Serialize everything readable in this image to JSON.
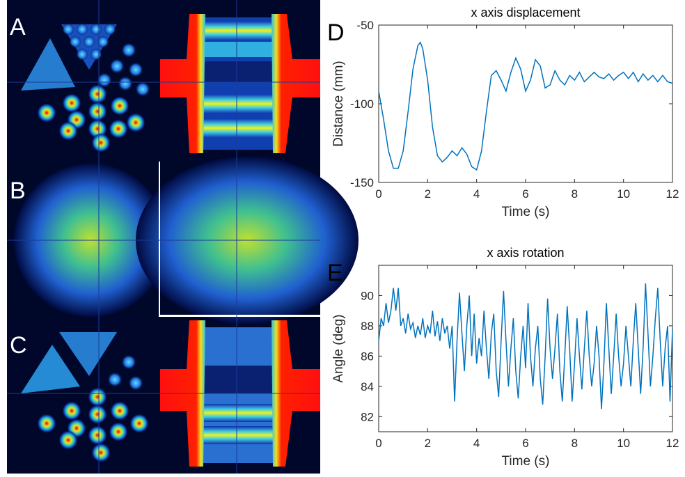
{
  "image_panels": {
    "labels": [
      "A",
      "B",
      "C"
    ]
  },
  "chart_data": [
    {
      "type": "line",
      "panel_label": "D",
      "title": "x axis displacement",
      "xlabel": "Time (s)",
      "ylabel": "Distance (mm)",
      "xlim": [
        0,
        12
      ],
      "xticks": [
        0,
        2,
        4,
        6,
        8,
        10,
        12
      ],
      "ylim": [
        -150,
        -50
      ],
      "yticks": [
        -150,
        -100,
        -50
      ],
      "x": [
        0,
        0.2,
        0.4,
        0.6,
        0.8,
        1.0,
        1.2,
        1.4,
        1.6,
        1.7,
        1.8,
        2.0,
        2.2,
        2.4,
        2.6,
        2.8,
        3.0,
        3.2,
        3.4,
        3.6,
        3.8,
        4.0,
        4.2,
        4.4,
        4.6,
        4.8,
        5.0,
        5.2,
        5.4,
        5.6,
        5.8,
        6.0,
        6.2,
        6.4,
        6.6,
        6.8,
        7.0,
        7.2,
        7.4,
        7.6,
        7.8,
        8.0,
        8.2,
        8.4,
        8.6,
        8.8,
        9.0,
        9.2,
        9.4,
        9.6,
        9.8,
        10.0,
        10.2,
        10.4,
        10.6,
        10.8,
        11.0,
        11.2,
        11.4,
        11.6,
        11.8,
        12.0
      ],
      "series": [
        {
          "color": "#0072bd",
          "values": [
            -92,
            -110,
            -130,
            -141,
            -141,
            -130,
            -105,
            -78,
            -63,
            -61,
            -65,
            -85,
            -115,
            -133,
            -137,
            -134,
            -130,
            -133,
            -128,
            -132,
            -140,
            -142,
            -130,
            -105,
            -82,
            -79,
            -85,
            -92,
            -80,
            -71,
            -78,
            -92,
            -85,
            -72,
            -76,
            -90,
            -88,
            -79,
            -85,
            -88,
            -82,
            -85,
            -80,
            -86,
            -83,
            -80,
            -83,
            -84,
            -81,
            -85,
            -82,
            -80,
            -84,
            -80,
            -86,
            -81,
            -85,
            -82,
            -86,
            -82,
            -86,
            -87
          ]
        }
      ]
    },
    {
      "type": "line",
      "panel_label": "E",
      "title": "x axis rotation",
      "xlabel": "Time (s)",
      "ylabel": "Angle (deg)",
      "xlim": [
        0,
        12
      ],
      "xticks": [
        0,
        2,
        4,
        6,
        8,
        10,
        12
      ],
      "ylim": [
        81,
        92
      ],
      "yticks": [
        82,
        84,
        86,
        88,
        90
      ],
      "x": [
        0,
        0.1,
        0.2,
        0.3,
        0.4,
        0.5,
        0.6,
        0.7,
        0.8,
        0.9,
        1.0,
        1.1,
        1.2,
        1.3,
        1.4,
        1.5,
        1.6,
        1.7,
        1.8,
        1.9,
        2.0,
        2.1,
        2.2,
        2.3,
        2.4,
        2.5,
        2.6,
        2.7,
        2.8,
        2.9,
        3.0,
        3.1,
        3.2,
        3.3,
        3.4,
        3.5,
        3.6,
        3.7,
        3.8,
        3.9,
        4.0,
        4.1,
        4.2,
        4.3,
        4.4,
        4.5,
        4.6,
        4.7,
        4.8,
        4.9,
        5.0,
        5.1,
        5.2,
        5.3,
        5.4,
        5.5,
        5.6,
        5.7,
        5.8,
        5.9,
        6.0,
        6.1,
        6.2,
        6.3,
        6.4,
        6.5,
        6.6,
        6.7,
        6.8,
        6.9,
        7.0,
        7.1,
        7.2,
        7.3,
        7.4,
        7.5,
        7.6,
        7.7,
        7.8,
        7.9,
        8.0,
        8.1,
        8.2,
        8.3,
        8.4,
        8.5,
        8.6,
        8.7,
        8.8,
        8.9,
        9.0,
        9.1,
        9.2,
        9.3,
        9.4,
        9.5,
        9.6,
        9.7,
        9.8,
        9.9,
        10.0,
        10.1,
        10.2,
        10.3,
        10.4,
        10.5,
        10.6,
        10.7,
        10.8,
        10.9,
        11.0,
        11.1,
        11.2,
        11.3,
        11.4,
        11.5,
        11.6,
        11.7,
        11.8,
        11.9,
        12.0
      ],
      "series": [
        {
          "color": "#0072bd",
          "values": [
            87.0,
            88.5,
            88.0,
            89.5,
            88.2,
            89.0,
            90.5,
            89.0,
            90.5,
            88.0,
            88.5,
            87.5,
            88.8,
            87.8,
            88.2,
            87.2,
            88.0,
            87.4,
            88.5,
            87.2,
            88.0,
            87.5,
            89.0,
            87.3,
            88.3,
            87.0,
            88.5,
            87.5,
            88.0,
            86.5,
            88.0,
            83.0,
            87.0,
            90.2,
            87.5,
            85.0,
            88.0,
            90.0,
            86.0,
            88.8,
            85.5,
            87.2,
            86.0,
            89.0,
            86.5,
            84.5,
            87.5,
            88.8,
            85.0,
            83.3,
            87.0,
            90.3,
            87.0,
            84.0,
            86.5,
            88.5,
            85.0,
            83.2,
            86.0,
            88.0,
            85.2,
            89.5,
            86.0,
            84.0,
            86.5,
            88.0,
            84.5,
            82.8,
            86.0,
            89.8,
            86.5,
            84.5,
            86.5,
            88.8,
            85.0,
            83.0,
            86.0,
            89.3,
            86.5,
            83.0,
            85.5,
            88.5,
            86.0,
            83.8,
            86.5,
            89.0,
            86.0,
            84.0,
            85.5,
            88.0,
            86.0,
            82.5,
            85.5,
            89.5,
            86.5,
            83.5,
            86.0,
            88.8,
            86.0,
            84.0,
            85.5,
            88.0,
            86.0,
            84.0,
            87.0,
            89.5,
            86.5,
            83.5,
            86.5,
            90.8,
            87.5,
            84.0,
            86.0,
            88.5,
            90.5,
            87.0,
            84.0,
            86.5,
            88.0,
            83.0,
            87.8
          ]
        }
      ]
    }
  ]
}
